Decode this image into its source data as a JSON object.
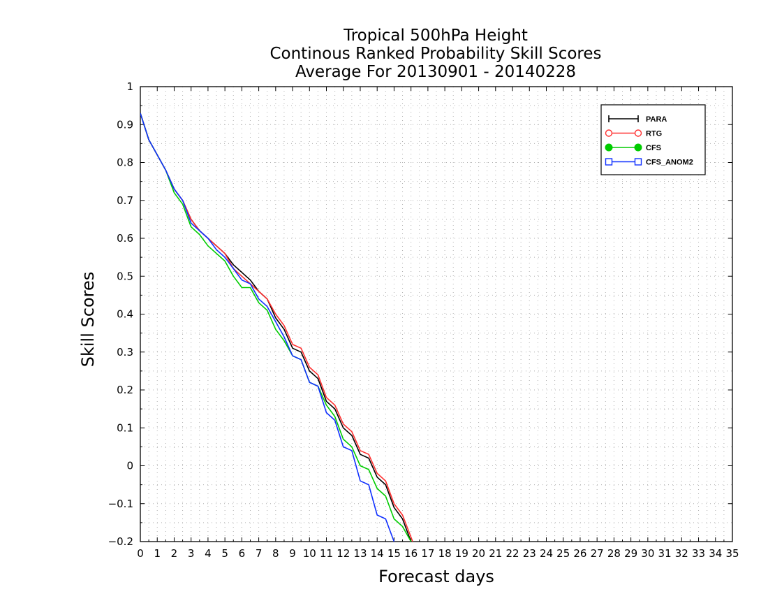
{
  "chart_data": {
    "type": "line",
    "title_lines": [
      "Tropical 500hPa Height",
      "Continous Ranked Probability Skill Scores",
      "Average For 20130901 - 20140228"
    ],
    "xlabel": "Forecast days",
    "ylabel": "Skill Scores",
    "xlim": [
      0,
      35
    ],
    "ylim": [
      -0.2,
      1
    ],
    "x_ticks": [
      0,
      1,
      2,
      3,
      4,
      5,
      6,
      7,
      8,
      9,
      10,
      11,
      12,
      13,
      14,
      15,
      16,
      17,
      18,
      19,
      20,
      21,
      22,
      23,
      24,
      25,
      26,
      27,
      28,
      29,
      30,
      31,
      32,
      33,
      34,
      35
    ],
    "y_ticks": [
      -0.2,
      -0.1,
      0,
      0.1,
      0.2,
      0.3,
      0.4,
      0.5,
      0.6,
      0.7,
      0.8,
      0.9,
      1
    ],
    "y_tick_labels": [
      "−0.2",
      "−0.1",
      "0",
      "0.1",
      "0.2",
      "0.3",
      "0.4",
      "0.5",
      "0.6",
      "0.7",
      "0.8",
      "0.9",
      "1"
    ],
    "grid": true,
    "legend_position": "top-right",
    "series": [
      {
        "name": "PARA",
        "color": "#000000",
        "marker": "plus",
        "x": [
          0,
          0.5,
          1,
          1.5,
          2,
          2.5,
          3,
          3.5,
          4,
          4.5,
          5,
          5.5,
          6,
          6.5,
          7,
          7.5,
          8,
          8.5,
          9,
          9.5,
          10,
          10.5,
          11,
          11.5,
          12,
          12.5,
          13,
          13.5,
          14,
          14.5,
          15,
          15.5,
          16
        ],
        "y": [
          0.93,
          0.86,
          0.82,
          0.78,
          0.73,
          0.7,
          0.65,
          0.62,
          0.6,
          0.58,
          0.56,
          0.53,
          0.51,
          0.49,
          0.46,
          0.44,
          0.39,
          0.36,
          0.31,
          0.3,
          0.25,
          0.23,
          0.17,
          0.15,
          0.1,
          0.08,
          0.03,
          0.02,
          -0.03,
          -0.05,
          -0.11,
          -0.14,
          -0.2
        ]
      },
      {
        "name": "RTG",
        "color": "#ff3030",
        "marker": "circle-open",
        "x": [
          0,
          0.5,
          1,
          1.5,
          2,
          2.5,
          3,
          3.5,
          4,
          4.5,
          5,
          5.5,
          6,
          6.5,
          7,
          7.5,
          8,
          8.5,
          9,
          9.5,
          10,
          10.5,
          11,
          11.5,
          12,
          12.5,
          13,
          13.5,
          14,
          14.5,
          15,
          15.5,
          16.1
        ],
        "y": [
          0.93,
          0.86,
          0.82,
          0.78,
          0.73,
          0.7,
          0.65,
          0.62,
          0.6,
          0.58,
          0.56,
          0.52,
          0.5,
          0.48,
          0.46,
          0.44,
          0.4,
          0.37,
          0.32,
          0.31,
          0.26,
          0.24,
          0.18,
          0.16,
          0.11,
          0.09,
          0.04,
          0.03,
          -0.02,
          -0.04,
          -0.1,
          -0.13,
          -0.2
        ]
      },
      {
        "name": "CFS",
        "color": "#00cc00",
        "marker": "circle-filled",
        "x": [
          0,
          0.5,
          1,
          1.5,
          2,
          2.5,
          3,
          3.5,
          4,
          4.5,
          5,
          5.5,
          6,
          6.5,
          7,
          7.5,
          8,
          8.5,
          9,
          9.5,
          10,
          10.5,
          11,
          11.5,
          12,
          12.5,
          13,
          13.5,
          14,
          14.5,
          15,
          15.5,
          16
        ],
        "y": [
          0.93,
          0.86,
          0.82,
          0.78,
          0.72,
          0.69,
          0.63,
          0.61,
          0.58,
          0.56,
          0.54,
          0.5,
          0.47,
          0.47,
          0.43,
          0.41,
          0.36,
          0.33,
          0.29,
          0.28,
          0.22,
          0.21,
          0.16,
          0.13,
          0.07,
          0.05,
          0,
          -0.01,
          -0.06,
          -0.08,
          -0.14,
          -0.16,
          -0.2
        ]
      },
      {
        "name": "CFS_ANOM2",
        "color": "#1030ff",
        "marker": "square-open",
        "x": [
          0,
          0.5,
          1,
          1.5,
          2,
          2.5,
          3,
          3.5,
          4,
          4.5,
          5,
          5.5,
          6,
          6.5,
          7,
          7.5,
          8,
          8.5,
          9,
          9.5,
          10,
          10.5,
          11,
          11.5,
          12,
          12.5,
          13,
          13.5,
          14,
          14.5,
          15
        ],
        "y": [
          0.93,
          0.86,
          0.82,
          0.78,
          0.73,
          0.7,
          0.64,
          0.62,
          0.6,
          0.57,
          0.55,
          0.52,
          0.49,
          0.48,
          0.44,
          0.42,
          0.38,
          0.34,
          0.29,
          0.28,
          0.22,
          0.21,
          0.14,
          0.12,
          0.05,
          0.04,
          -0.04,
          -0.05,
          -0.13,
          -0.14,
          -0.2
        ]
      }
    ]
  }
}
